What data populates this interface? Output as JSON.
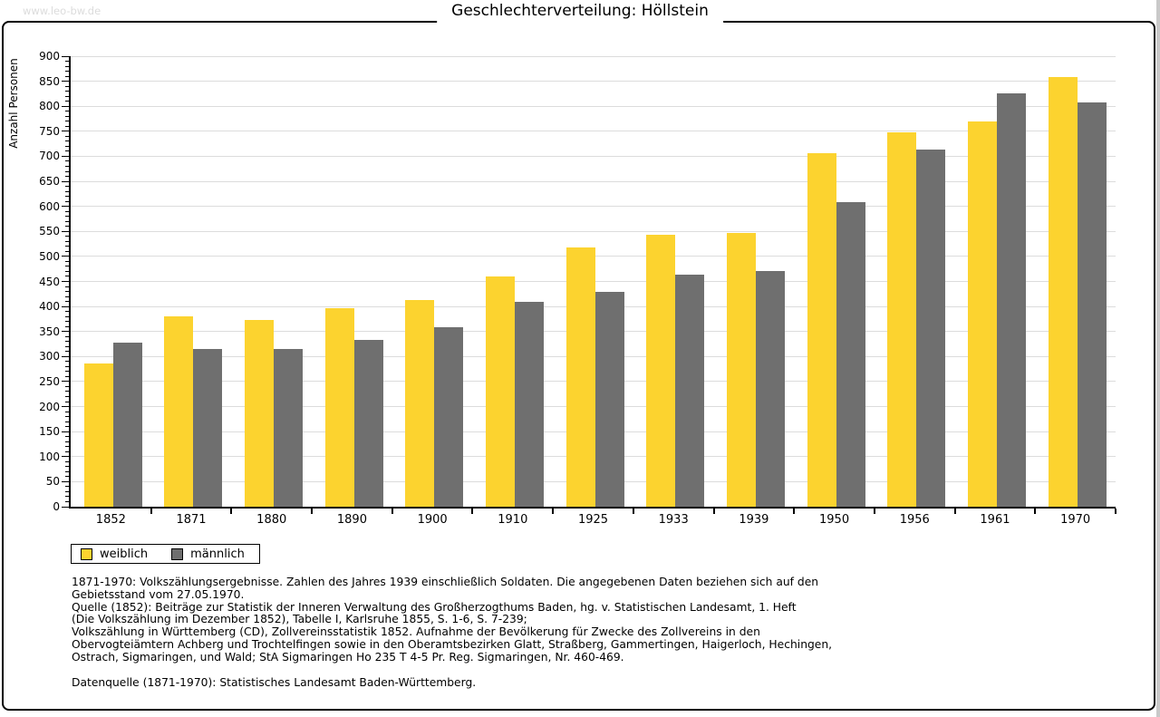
{
  "watermark": "www.leo-bw.de",
  "title": "Geschlechterverteilung: Höllstein",
  "chart_data": {
    "type": "bar",
    "title": "Geschlechterverteilung: Höllstein",
    "xlabel": "",
    "ylabel": "Anzahl Personen",
    "categories": [
      "1852",
      "1871",
      "1880",
      "1890",
      "1900",
      "1910",
      "1925",
      "1933",
      "1939",
      "1950",
      "1956",
      "1961",
      "1970"
    ],
    "series": [
      {
        "name": "weiblich",
        "color": "#FCD32F",
        "values": [
          287,
          380,
          373,
          396,
          412,
          460,
          518,
          543,
          547,
          706,
          748,
          770,
          858
        ]
      },
      {
        "name": "männlich",
        "color": "#6F6F6F",
        "values": [
          328,
          315,
          315,
          333,
          359,
          409,
          430,
          463,
          471,
          608,
          713,
          826,
          808
        ]
      }
    ],
    "ylim": [
      0,
      900
    ],
    "ytick_step": 50,
    "yminor_step": 10,
    "grid": true,
    "grid_color": "#dcdcdc",
    "axis_color": "#000000",
    "legend_position": "below-left"
  },
  "legend": {
    "items": [
      {
        "label": "weiblich",
        "color": "#FCD32F"
      },
      {
        "label": "männlich",
        "color": "#6F6F6F"
      }
    ]
  },
  "footer": {
    "lines": [
      "1871-1970: Volkszählungsergebnisse. Zahlen des Jahres 1939 einschließlich Soldaten. Die angegebenen Daten beziehen sich auf den",
      "Gebietsstand vom 27.05.1970.",
      "Quelle (1852): Beiträge zur Statistik der Inneren Verwaltung des Großherzogthums Baden, hg. v. Statistischen Landesamt, 1. Heft",
      "(Die Volkszählung im Dezember 1852), Tabelle I, Karlsruhe 1855, S. 1-6, S. 7-239;",
      "Volkszählung in Württemberg (CD), Zollvereinsstatistik 1852. Aufnahme der Bevölkerung für Zwecke des Zollvereins in den",
      "Obervogteiämtern Achberg und Trochtelfingen sowie in den Oberamtsbezirken Glatt, Straßberg, Gammertingen, Haigerloch, Hechingen,",
      "Ostrach, Sigmaringen, und Wald; StA Sigmaringen Ho 235 T 4-5 Pr. Reg. Sigmaringen, Nr. 460-469."
    ],
    "datasource": "Datenquelle (1871-1970): Statistisches Landesamt Baden-Württemberg."
  }
}
